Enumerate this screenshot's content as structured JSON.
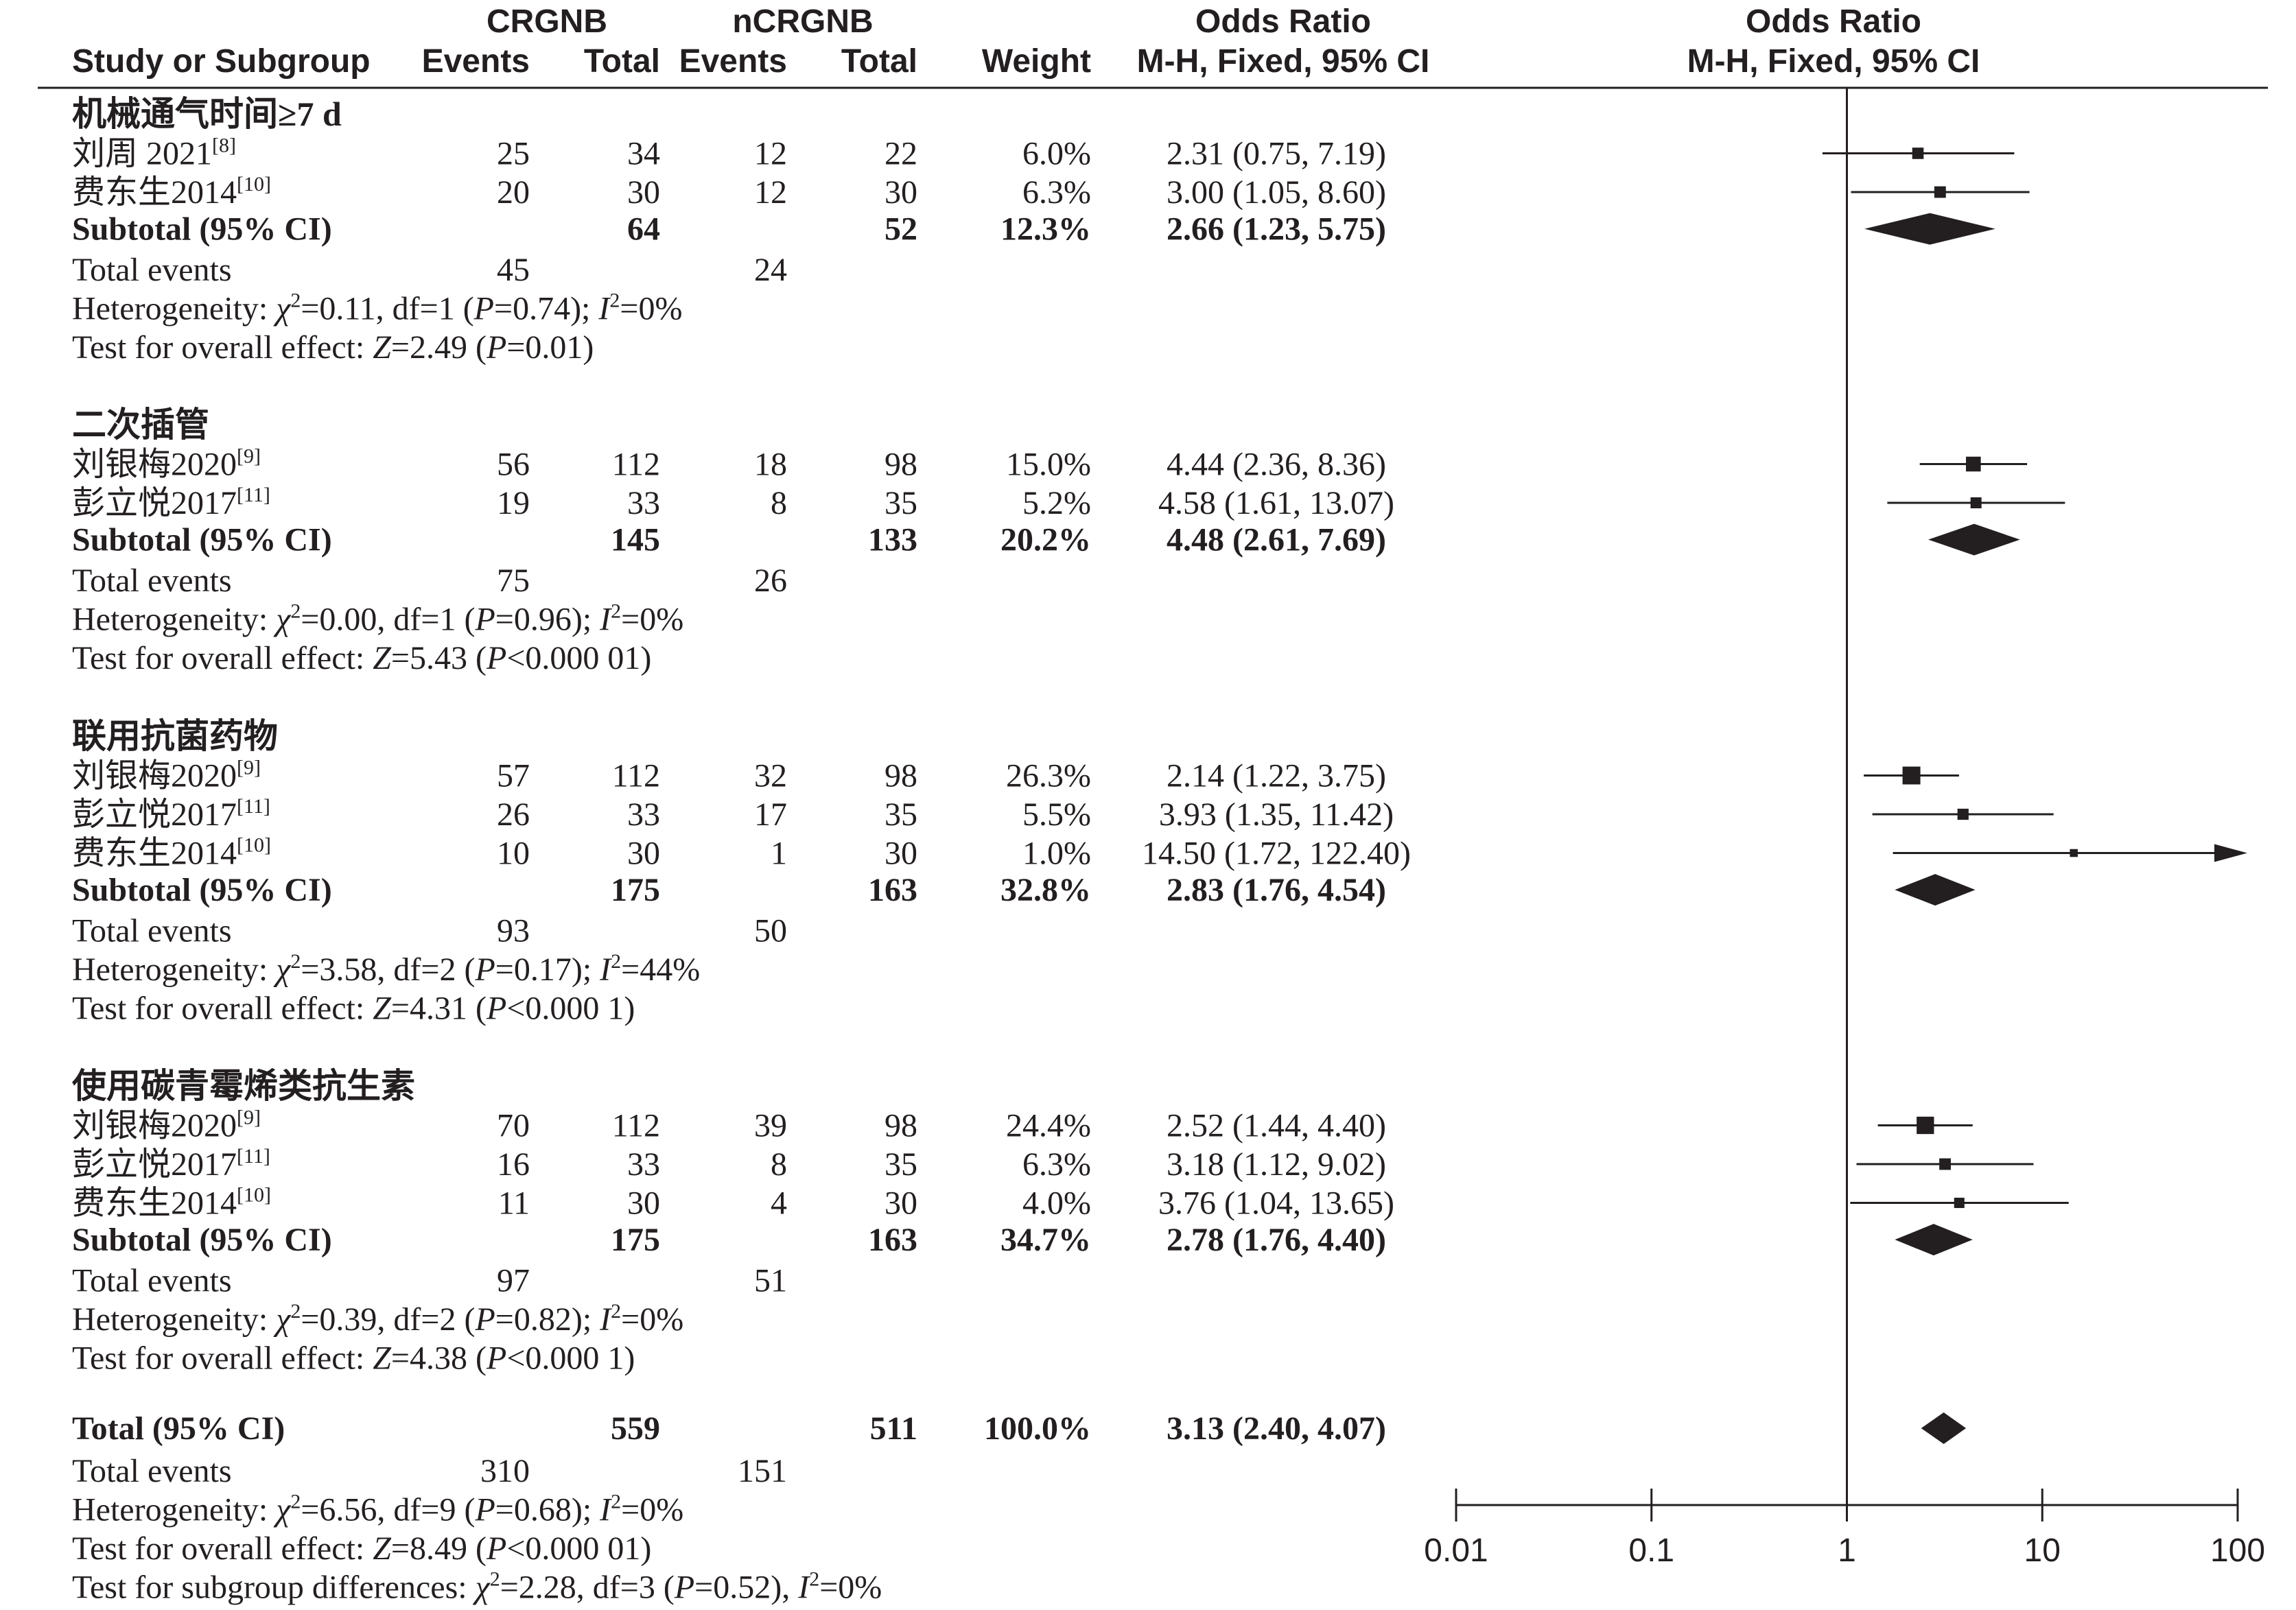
{
  "header": {
    "study_col": "Study or Subgroup",
    "group1": "CRGNB",
    "group2": "nCRGNB",
    "events": "Events",
    "total": "Total",
    "weight": "Weight",
    "or_title": "Odds Ratio",
    "or_method": "M-H, Fixed, 95% CI",
    "plot_title": "Odds Ratio",
    "plot_method": "M-H, Fixed, 95% CI"
  },
  "chart_data": {
    "type": "forest",
    "x_scale": "log",
    "xlim": [
      0.01,
      100
    ],
    "x_ticks": [
      0.01,
      0.1,
      1,
      10,
      100
    ],
    "x_tick_labels": [
      "0.01",
      "0.1",
      "1",
      "10",
      "100"
    ],
    "reference_line": 1,
    "subgroups": [
      {
        "name": "机械通气时间≥7 d",
        "studies": [
          {
            "label": "刘周 2021",
            "ref": "[8]",
            "e1": "25",
            "t1": "34",
            "e2": "12",
            "t2": "22",
            "weight": "6.0%",
            "ci_text": "2.31 (0.75, 7.19)",
            "or": 2.31,
            "lo": 0.75,
            "hi": 7.19,
            "w": 6.0
          },
          {
            "label": "费东生2014",
            "ref": "[10]",
            "e1": "20",
            "t1": "30",
            "e2": "12",
            "t2": "30",
            "weight": "6.3%",
            "ci_text": "3.00 (1.05, 8.60)",
            "or": 3.0,
            "lo": 1.05,
            "hi": 8.6,
            "w": 6.3
          }
        ],
        "subtotal": {
          "label": "Subtotal (95% CI)",
          "t1": "64",
          "t2": "52",
          "weight": "12.3%",
          "ci_text": "2.66 (1.23, 5.75)",
          "or": 2.66,
          "lo": 1.23,
          "hi": 5.75
        },
        "events": {
          "label": "Total events",
          "e1": "45",
          "e2": "24"
        },
        "heterogeneity": "Heterogeneity: χ²=0.11, df=1 (P=0.74); I²=0%",
        "effect": "Test for overall effect: Z=2.49 (P=0.01)"
      },
      {
        "name": "二次插管",
        "studies": [
          {
            "label": "刘银梅2020",
            "ref": "[9]",
            "e1": "56",
            "t1": "112",
            "e2": "18",
            "t2": "98",
            "weight": "15.0%",
            "ci_text": "4.44 (2.36, 8.36)",
            "or": 4.44,
            "lo": 2.36,
            "hi": 8.36,
            "w": 15.0
          },
          {
            "label": "彭立悦2017",
            "ref": "[11]",
            "e1": "19",
            "t1": "33",
            "e2": "8",
            "t2": "35",
            "weight": "5.2%",
            "ci_text": "4.58 (1.61, 13.07)",
            "or": 4.58,
            "lo": 1.61,
            "hi": 13.07,
            "w": 5.2
          }
        ],
        "subtotal": {
          "label": "Subtotal (95% CI)",
          "t1": "145",
          "t2": "133",
          "weight": "20.2%",
          "ci_text": "4.48 (2.61, 7.69)",
          "or": 4.48,
          "lo": 2.61,
          "hi": 7.69
        },
        "events": {
          "label": "Total events",
          "e1": "75",
          "e2": "26"
        },
        "heterogeneity": "Heterogeneity: χ²=0.00, df=1 (P=0.96); I²=0%",
        "effect": "Test for overall effect: Z=5.43 (P<0.000 01)"
      },
      {
        "name": "联用抗菌药物",
        "studies": [
          {
            "label": "刘银梅2020",
            "ref": "[9]",
            "e1": "57",
            "t1": "112",
            "e2": "32",
            "t2": "98",
            "weight": "26.3%",
            "ci_text": "2.14 (1.22, 3.75)",
            "or": 2.14,
            "lo": 1.22,
            "hi": 3.75,
            "w": 26.3
          },
          {
            "label": "彭立悦2017",
            "ref": "[11]",
            "e1": "26",
            "t1": "33",
            "e2": "17",
            "t2": "35",
            "weight": "5.5%",
            "ci_text": "3.93 (1.35, 11.42)",
            "or": 3.93,
            "lo": 1.35,
            "hi": 11.42,
            "w": 5.5
          },
          {
            "label": "费东生2014",
            "ref": "[10]",
            "e1": "10",
            "t1": "30",
            "e2": "1",
            "t2": "30",
            "weight": "1.0%",
            "ci_text": "14.50 (1.72, 122.40)",
            "or": 14.5,
            "lo": 1.72,
            "hi": 122.4,
            "w": 1.0
          }
        ],
        "subtotal": {
          "label": "Subtotal (95% CI)",
          "t1": "175",
          "t2": "163",
          "weight": "32.8%",
          "ci_text": "2.83 (1.76, 4.54)",
          "or": 2.83,
          "lo": 1.76,
          "hi": 4.54
        },
        "events": {
          "label": "Total events",
          "e1": "93",
          "e2": "50"
        },
        "heterogeneity": "Heterogeneity: χ²=3.58, df=2 (P=0.17); I²=44%",
        "effect": "Test for overall effect: Z=4.31 (P<0.000 1)"
      },
      {
        "name": "使用碳青霉烯类抗生素",
        "studies": [
          {
            "label": "刘银梅2020",
            "ref": "[9]",
            "e1": "70",
            "t1": "112",
            "e2": "39",
            "t2": "98",
            "weight": "24.4%",
            "ci_text": "2.52 (1.44, 4.40)",
            "or": 2.52,
            "lo": 1.44,
            "hi": 4.4,
            "w": 24.4
          },
          {
            "label": "彭立悦2017",
            "ref": "[11]",
            "e1": "16",
            "t1": "33",
            "e2": "8",
            "t2": "35",
            "weight": "6.3%",
            "ci_text": "3.18 (1.12, 9.02)",
            "or": 3.18,
            "lo": 1.12,
            "hi": 9.02,
            "w": 6.3
          },
          {
            "label": "费东生2014",
            "ref": "[10]",
            "e1": "11",
            "t1": "30",
            "e2": "4",
            "t2": "30",
            "weight": "4.0%",
            "ci_text": "3.76 (1.04, 13.65)",
            "or": 3.76,
            "lo": 1.04,
            "hi": 13.65,
            "w": 4.0
          }
        ],
        "subtotal": {
          "label": "Subtotal (95% CI)",
          "t1": "175",
          "t2": "163",
          "weight": "34.7%",
          "ci_text": "2.78 (1.76, 4.40)",
          "or": 2.78,
          "lo": 1.76,
          "hi": 4.4
        },
        "events": {
          "label": "Total events",
          "e1": "97",
          "e2": "51"
        },
        "heterogeneity": "Heterogeneity: χ²=0.39, df=2 (P=0.82); I²=0%",
        "effect": "Test for overall effect: Z=4.38 (P<0.000 1)"
      }
    ],
    "overall": {
      "label": "Total (95% CI)",
      "t1": "559",
      "t2": "511",
      "weight": "100.0%",
      "ci_text": "3.13 (2.40, 4.07)",
      "or": 3.13,
      "lo": 2.4,
      "hi": 4.07,
      "events": {
        "label": "Total events",
        "e1": "310",
        "e2": "151"
      },
      "heterogeneity": "Heterogeneity: χ²=6.56, df=9 (P=0.68); I²=0%",
      "effect": "Test for overall effect: Z=8.49 (P<0.000 01)",
      "subgroup_diff": "Test for subgroup differences: χ²=2.28, df=3 (P=0.52), I²=0%"
    }
  }
}
